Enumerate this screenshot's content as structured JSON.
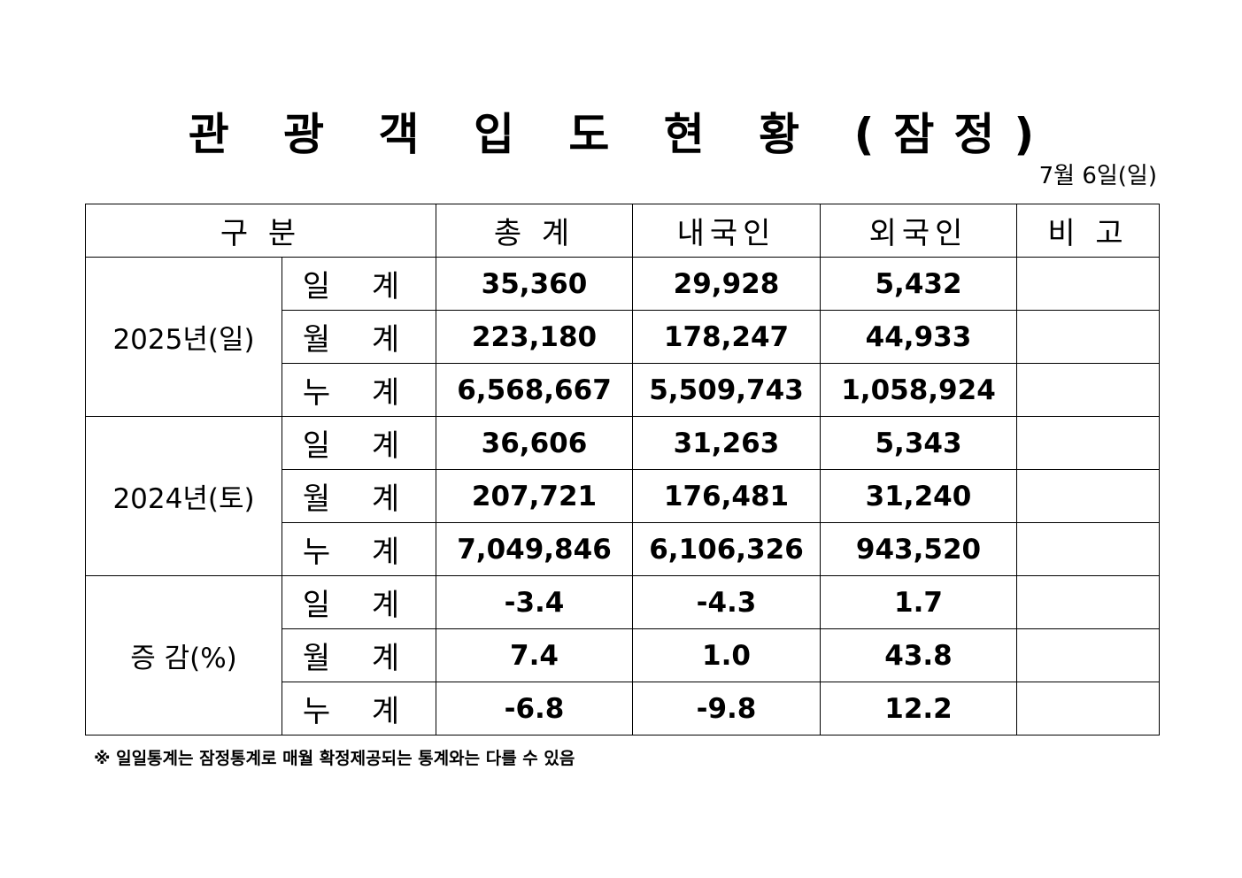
{
  "title": "관 광 객 입 도 현 황 (잠정)",
  "date": "7월 6일(일)",
  "headers": {
    "category": "구 분",
    "total": "총 계",
    "domestic": "내국인",
    "foreign": "외국인",
    "remarks": "비 고"
  },
  "groups": [
    {
      "label": "2025년(일)",
      "rows": [
        {
          "label": "일 계",
          "total": "35,360",
          "domestic": "29,928",
          "foreign": "5,432",
          "remarks": ""
        },
        {
          "label": "월 계",
          "total": "223,180",
          "domestic": "178,247",
          "foreign": "44,933",
          "remarks": ""
        },
        {
          "label": "누 계",
          "total": "6,568,667",
          "domestic": "5,509,743",
          "foreign": "1,058,924",
          "remarks": ""
        }
      ]
    },
    {
      "label": "2024년(토)",
      "rows": [
        {
          "label": "일 계",
          "total": "36,606",
          "domestic": "31,263",
          "foreign": "5,343",
          "remarks": ""
        },
        {
          "label": "월 계",
          "total": "207,721",
          "domestic": "176,481",
          "foreign": "31,240",
          "remarks": ""
        },
        {
          "label": "누 계",
          "total": "7,049,846",
          "domestic": "6,106,326",
          "foreign": "943,520",
          "remarks": ""
        }
      ]
    },
    {
      "label": "증 감(%)",
      "rows": [
        {
          "label": "일 계",
          "total": "-3.4",
          "domestic": "-4.3",
          "foreign": "1.7",
          "remarks": ""
        },
        {
          "label": "월 계",
          "total": "7.4",
          "domestic": "1.0",
          "foreign": "43.8",
          "remarks": ""
        },
        {
          "label": "누 계",
          "total": "-6.8",
          "domestic": "-9.8",
          "foreign": "12.2",
          "remarks": ""
        }
      ]
    }
  ],
  "footnote": "※ 일일통계는 잠정통계로 매월 확정제공되는 통계와는 다를 수 있음"
}
